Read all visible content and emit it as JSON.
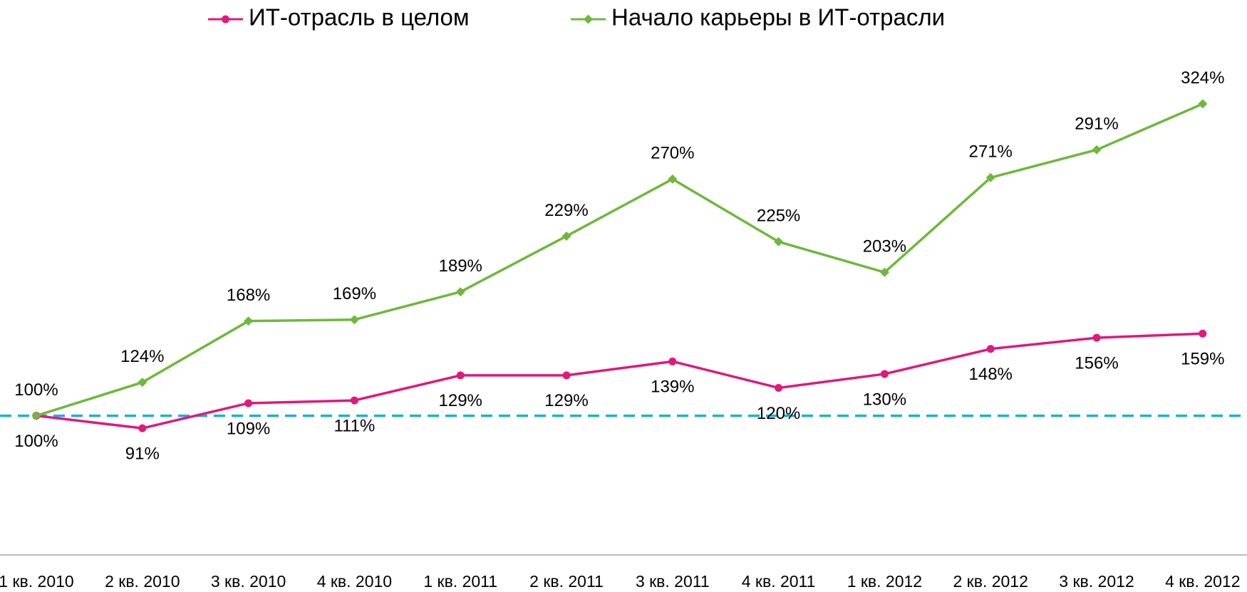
{
  "chart_data": {
    "type": "line",
    "categories": [
      "1 кв. 2010",
      "2 кв. 2010",
      "3 кв. 2010",
      "4 кв. 2010",
      "1 кв. 2011",
      "2 кв. 2011",
      "3 кв. 2011",
      "4 кв. 2011",
      "1 кв. 2012",
      "2 кв. 2012",
      "3 кв. 2012",
      "4 кв. 2012"
    ],
    "series": [
      {
        "name": "ИТ-отрасль в целом",
        "color": "#e0197d",
        "marker": "circle",
        "values": [
          100,
          91,
          109,
          111,
          129,
          129,
          139,
          120,
          130,
          148,
          156,
          159
        ],
        "value_labels": [
          "100%",
          "91%",
          "109%",
          "111%",
          "129%",
          "129%",
          "139%",
          "120%",
          "130%",
          "148%",
          "156%",
          "159%"
        ]
      },
      {
        "name": "Начало карьеры в ИТ-отрасли",
        "color": "#6fb83b",
        "marker": "diamond",
        "values": [
          100,
          124,
          168,
          169,
          189,
          229,
          270,
          225,
          203,
          271,
          291,
          324
        ],
        "value_labels": [
          "100%",
          "124%",
          "168%",
          "169%",
          "189%",
          "229%",
          "270%",
          "225%",
          "203%",
          "271%",
          "291%",
          "324%"
        ]
      }
    ],
    "ylim": [
      0,
      350
    ],
    "reference_line": {
      "value": 100,
      "color": "#1ab0e0"
    },
    "legend": "top"
  }
}
